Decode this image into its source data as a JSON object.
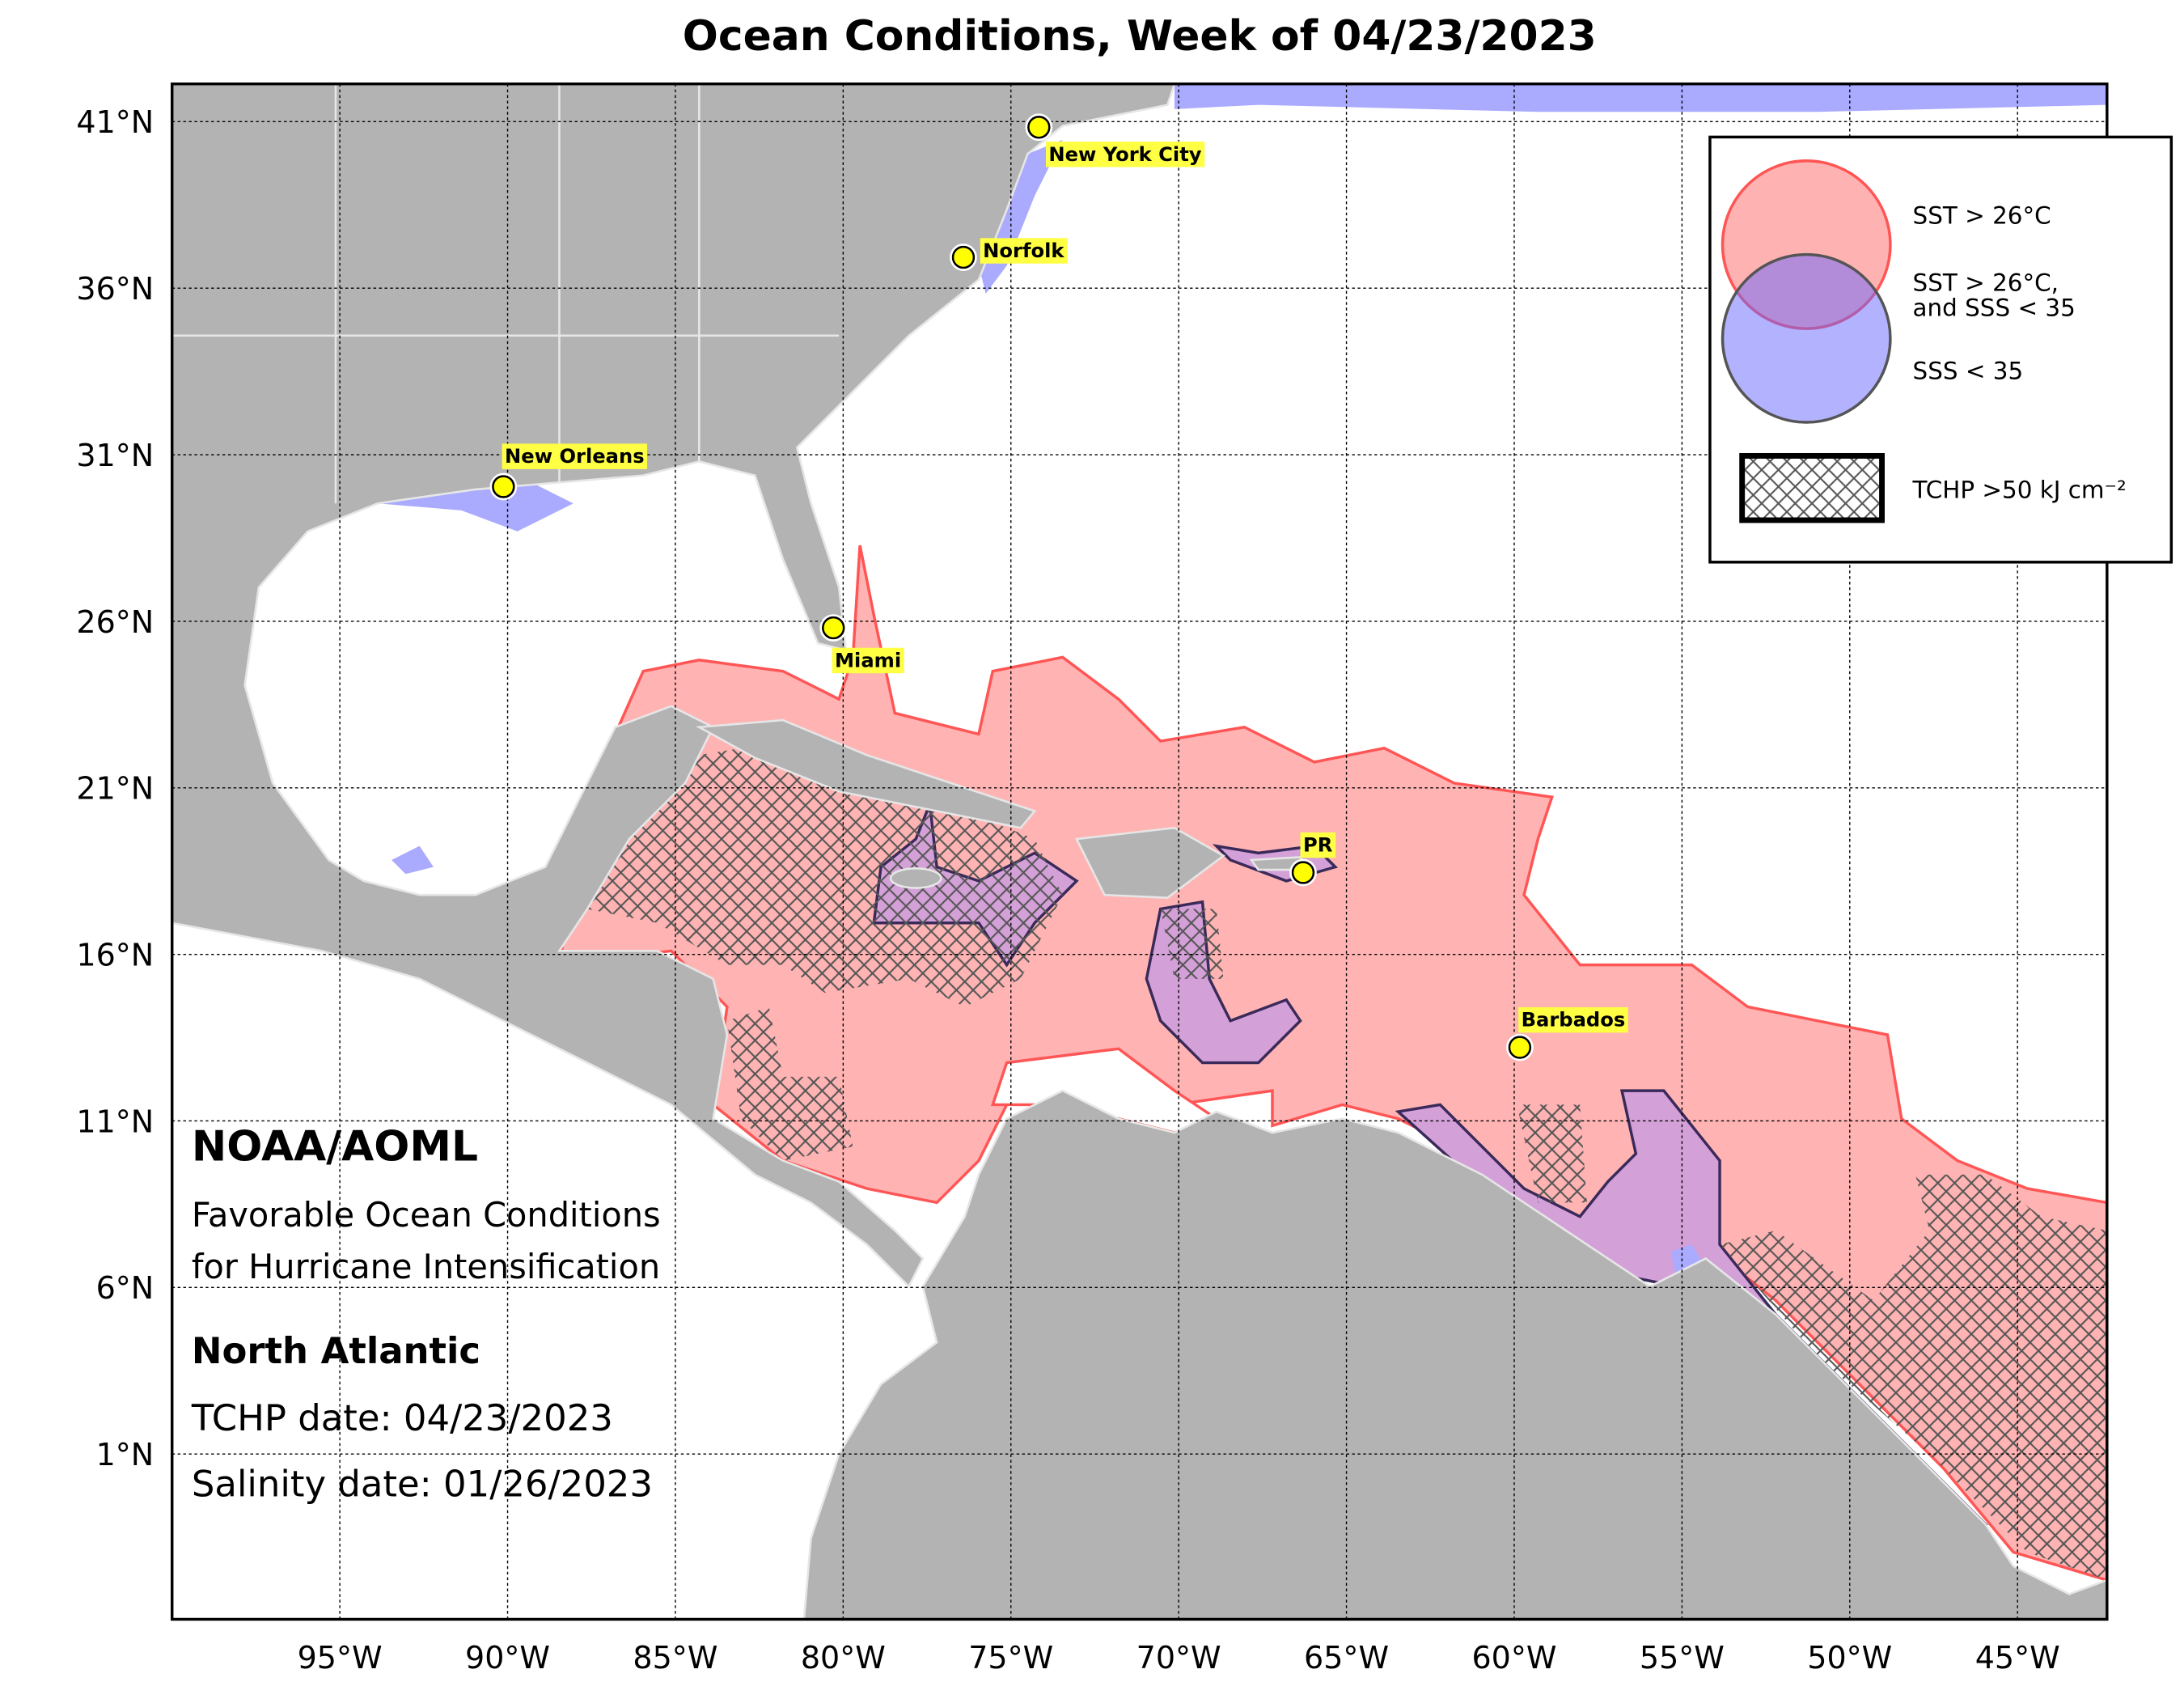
{
  "title": "Ocean Conditions, Week of 04/23/2023",
  "map": {
    "lat_labels": [
      "41°N",
      "36°N",
      "31°N",
      "26°N",
      "21°N",
      "16°N",
      "11°N",
      "6°N",
      "1°N"
    ],
    "lon_labels": [
      "95°W",
      "90°W",
      "85°W",
      "80°W",
      "75°W",
      "70°W",
      "65°W",
      "60°W",
      "55°W",
      "50°W",
      "45°W"
    ],
    "cities": [
      "New York City",
      "Norfolk",
      "New Orleans",
      "Miami",
      "PR",
      "Barbados"
    ]
  },
  "legend": {
    "items": [
      "SST > 26°C",
      "SST > 26°C,",
      "and SSS < 35",
      "SSS < 35",
      "TCHP >50 kJ cm⁻²"
    ]
  },
  "info": {
    "org": "NOAA/AOML",
    "line1": "Favorable Ocean Conditions",
    "line2": "for Hurricane Intensification",
    "region": "North Atlantic",
    "tchp_date": "TCHP date: 04/23/2023",
    "salinity_date": "Salinity date: 01/26/2023"
  }
}
